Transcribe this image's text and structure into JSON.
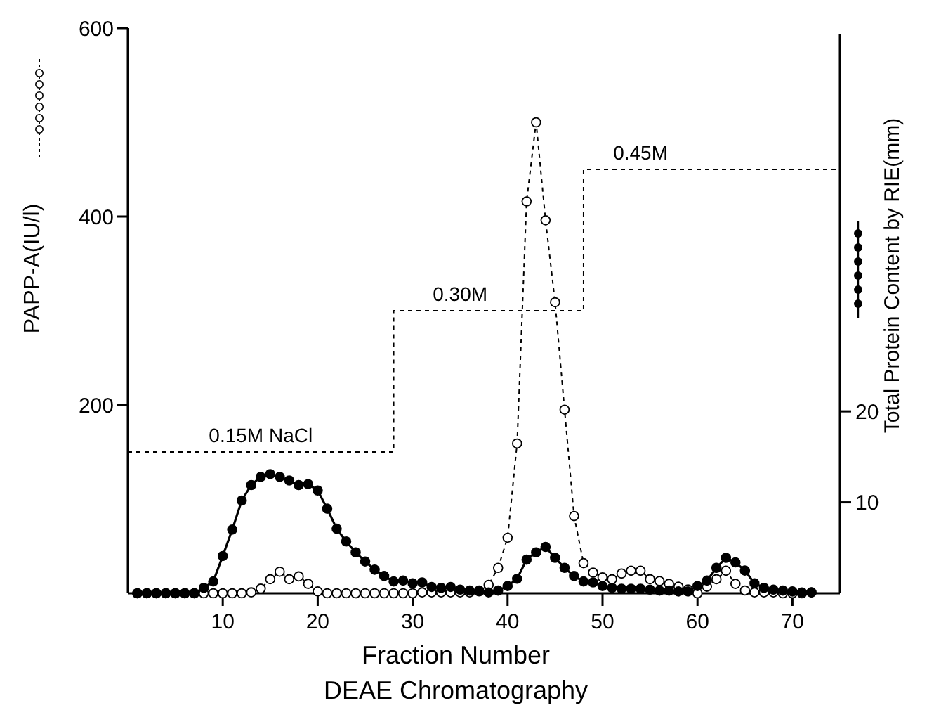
{
  "chart_data": {
    "type": "line",
    "xlabel": "Fraction Number",
    "ylabel": "PAPP-A(IU/l)",
    "y2label": "Total Protein Content by RIE(mm)",
    "annotations": [
      "DEAE Chromatography",
      {
        "text": "0.15M NaCl",
        "x": 14,
        "y": 150
      },
      {
        "text": "0.30M",
        "x": 35,
        "y": 300
      },
      {
        "text": "0.45M",
        "x": 54,
        "y": 450
      }
    ],
    "x": [
      1,
      2,
      3,
      4,
      5,
      6,
      7,
      8,
      9,
      10,
      11,
      12,
      13,
      14,
      15,
      16,
      17,
      18,
      19,
      20,
      21,
      22,
      23,
      24,
      25,
      26,
      27,
      28,
      29,
      30,
      31,
      32,
      33,
      34,
      35,
      36,
      37,
      38,
      39,
      40,
      41,
      42,
      43,
      44,
      45,
      46,
      47,
      48,
      49,
      50,
      51,
      52,
      53,
      54,
      55,
      56,
      57,
      58,
      59,
      60,
      61,
      62,
      63,
      64,
      65,
      66,
      67,
      68,
      69,
      70,
      71,
      72
    ],
    "xlim": [
      0,
      75
    ],
    "xticks": [
      10,
      20,
      30,
      40,
      50,
      60,
      70
    ],
    "ylim": [
      0,
      600
    ],
    "yticks": [
      200,
      400,
      600
    ],
    "y2lim": [
      0,
      61.5
    ],
    "y2ticks": [
      10,
      20
    ],
    "grid": false,
    "series": [
      {
        "color": "#000000",
        "line_style": "dashed",
        "marker": "circle",
        "values": [
          0,
          0,
          0,
          0,
          0,
          0,
          0,
          0,
          0,
          0,
          0,
          0,
          1,
          5,
          15,
          23,
          15,
          18,
          10,
          2,
          0,
          0,
          0,
          0,
          0,
          0,
          0,
          0,
          0,
          0,
          1,
          1,
          1,
          1,
          1,
          1,
          2,
          9,
          27,
          59,
          159,
          416,
          500,
          396,
          309,
          195,
          82,
          32,
          22,
          17,
          15,
          21,
          24,
          24,
          15,
          13,
          10,
          7,
          4,
          0,
          7,
          15,
          24,
          10,
          3,
          1,
          1,
          1,
          0,
          0,
          0,
          1
        ]
      },
      {
        "color": "#000000",
        "line_style": "solid",
        "marker": "circle",
        "axis": "y2",
        "values": [
          0,
          0,
          0,
          0,
          0,
          0,
          0,
          0.6,
          1.3,
          4.1,
          7,
          10.2,
          11.9,
          12.8,
          13.1,
          12.8,
          12.4,
          11.9,
          12,
          11.3,
          9.3,
          7.1,
          5.7,
          4.5,
          3.5,
          2.6,
          1.9,
          1.3,
          1.4,
          1.1,
          1.2,
          0.7,
          0.6,
          0.7,
          0.4,
          0.3,
          0.3,
          0.1,
          0.3,
          0.8,
          1.6,
          3.7,
          4.5,
          5.1,
          3.9,
          2.8,
          1.9,
          1.3,
          1.2,
          0.8,
          0.6,
          0.5,
          0.5,
          0.5,
          0.4,
          0.3,
          0.3,
          0.2,
          0.2,
          0.8,
          1.4,
          2.8,
          3.9,
          3.4,
          2.5,
          1.1,
          0.6,
          0.4,
          0.3,
          0.2,
          0.1,
          0.1
        ]
      },
      {
        "type": "step",
        "color": "#000000",
        "line_style": "dashed",
        "marker": "none",
        "x": [
          0,
          28,
          48,
          75
        ],
        "values": [
          150,
          300,
          450,
          450
        ]
      }
    ]
  }
}
